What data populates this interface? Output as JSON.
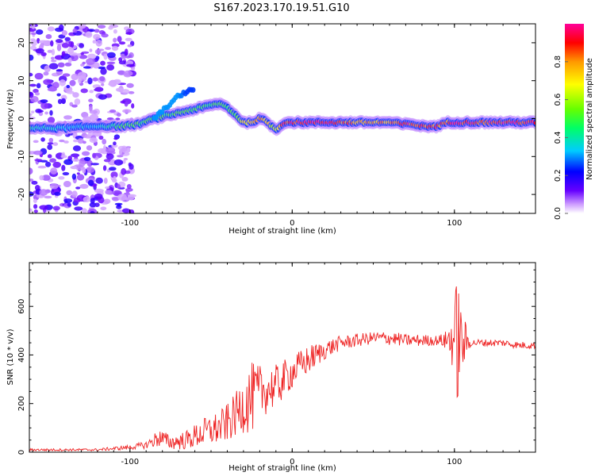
{
  "figure_title": "S167.2023.170.19.51.G10",
  "chart_data": [
    {
      "type": "heatmap",
      "title": "",
      "xlabel": "Height of straight line (km)",
      "ylabel": "Frequency (Hz)",
      "xlim": [
        -162,
        150
      ],
      "ylim": [
        -25,
        25
      ],
      "xticks": [
        -100,
        0,
        100
      ],
      "yticks": [
        -20,
        -10,
        0,
        10,
        20
      ],
      "colorbar": {
        "label": "Normalized spectral amplitude",
        "ticks": [
          0.0,
          0.2,
          0.4,
          0.6,
          0.8
        ],
        "range": [
          0,
          1
        ],
        "colors": [
          "#ffffff",
          "#cc99ff",
          "#6600ff",
          "#0000ff",
          "#00ccff",
          "#00ff66",
          "#66ff00",
          "#ffff00",
          "#ff9900",
          "#ff0000",
          "#ff0099"
        ]
      },
      "ridge": {
        "x": [
          -162,
          -140,
          -120,
          -105,
          -95,
          -85,
          -75,
          -65,
          -55,
          -45,
          -40,
          -35,
          -30,
          -25,
          -20,
          -15,
          -10,
          -5,
          0,
          20,
          40,
          60,
          70,
          75,
          80,
          85,
          90,
          95,
          100,
          110,
          120,
          130,
          140,
          150
        ],
        "y": [
          -2.5,
          -2.5,
          -2,
          -2,
          -1.5,
          0,
          1,
          2,
          3,
          4,
          3,
          1,
          -1,
          -1,
          0,
          -1,
          -3,
          -1,
          -1,
          -1,
          -1,
          -1,
          -1.5,
          -1.5,
          -2,
          -2,
          -2,
          -1,
          -1,
          -1,
          -1,
          -1,
          -1,
          -1
        ],
        "amplitude": [
          0.4,
          0.35,
          0.35,
          0.5,
          0.5,
          0.5,
          0.5,
          0.5,
          0.5,
          0.5,
          0.5,
          0.5,
          0.7,
          0.8,
          0.9,
          0.8,
          0.6,
          0.95,
          0.95,
          0.95,
          0.85,
          0.8,
          0.95,
          0.95,
          0.9,
          0.9,
          0.9,
          0.85,
          0.95,
          0.95,
          0.95,
          0.95,
          0.95,
          0.95
        ]
      },
      "secondary_branch": {
        "x": [
          -85,
          -80,
          -75,
          -70,
          -65,
          -60
        ],
        "y": [
          0,
          2,
          4,
          6,
          7,
          8
        ],
        "amplitude": [
          0.3,
          0.3,
          0.3,
          0.3,
          0.25,
          0.25
        ]
      }
    },
    {
      "type": "line",
      "title": "",
      "xlabel": "Height of straight line (km)",
      "ylabel": "SNR (10 * v/v)",
      "xlim": [
        -162,
        150
      ],
      "ylim": [
        0,
        780
      ],
      "xticks": [
        -100,
        0,
        100
      ],
      "yticks": [
        0,
        200,
        400,
        600
      ],
      "color": "#ee2222",
      "envelope": {
        "x": [
          -162,
          -140,
          -120,
          -100,
          -90,
          -82,
          -75,
          -65,
          -55,
          -45,
          -40,
          -35,
          -30,
          -25,
          -20,
          -15,
          -10,
          -5,
          0,
          10,
          20,
          30,
          50,
          60,
          70,
          80,
          90,
          95,
          100,
          102,
          104,
          110,
          120,
          130,
          140,
          150
        ],
        "y": [
          10,
          10,
          10,
          20,
          30,
          60,
          40,
          50,
          80,
          100,
          120,
          150,
          200,
          220,
          250,
          260,
          270,
          300,
          330,
          380,
          420,
          450,
          470,
          470,
          460,
          460,
          460,
          460,
          470,
          480,
          450,
          450,
          450,
          450,
          440,
          440
        ],
        "noise": [
          5,
          5,
          5,
          10,
          15,
          40,
          30,
          40,
          60,
          70,
          80,
          90,
          120,
          150,
          110,
          100,
          90,
          80,
          70,
          60,
          40,
          30,
          25,
          30,
          25,
          25,
          20,
          40,
          150,
          300,
          150,
          15,
          15,
          15,
          15,
          15
        ]
      }
    }
  ]
}
